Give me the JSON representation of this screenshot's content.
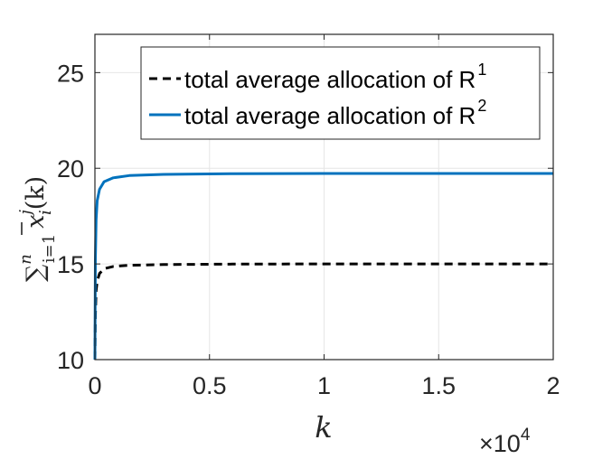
{
  "chart_data": {
    "type": "line",
    "xlabel": "k",
    "ylabel": "∑ⁿᵢ₌₁ x̄ᵢʲ(k)",
    "ylabel_parts": {
      "sum": "∑",
      "sup": "n",
      "sub": "i=1",
      "var": "x",
      "var_sup": "j",
      "var_sub": "i",
      "arg": "(k)"
    },
    "x_multiplier": "×10",
    "x_multiplier_exp": "4",
    "xlim": [
      0,
      2
    ],
    "ylim": [
      10,
      27
    ],
    "xticks": [
      0,
      0.5,
      1,
      1.5,
      2
    ],
    "xtick_labels": [
      "0",
      "0.5",
      "1",
      "1.5",
      "2"
    ],
    "yticks": [
      10,
      15,
      20,
      25
    ],
    "ytick_labels": [
      "10",
      "15",
      "20",
      "25"
    ],
    "grid": true,
    "legend_position": "top-right",
    "series": [
      {
        "name": "total average allocation of R",
        "name_sup": "1",
        "color": "#000000",
        "style": "dashed",
        "x": [
          0,
          0.002,
          0.005,
          0.01,
          0.02,
          0.04,
          0.08,
          0.15,
          0.3,
          0.6,
          1.0,
          1.5,
          2.0
        ],
        "y": [
          10,
          12.3,
          13.6,
          14.1,
          14.5,
          14.75,
          14.87,
          14.93,
          14.97,
          14.99,
          15.0,
          15.0,
          15.0
        ]
      },
      {
        "name": "total average allocation of R",
        "name_sup": "2",
        "color": "#0072BD",
        "style": "solid",
        "x": [
          0,
          0.002,
          0.005,
          0.01,
          0.02,
          0.04,
          0.08,
          0.15,
          0.3,
          0.6,
          1.0,
          1.5,
          2.0
        ],
        "y": [
          10,
          15.2,
          17.3,
          18.3,
          18.9,
          19.3,
          19.5,
          19.62,
          19.68,
          19.72,
          19.73,
          19.73,
          19.73
        ]
      }
    ]
  }
}
